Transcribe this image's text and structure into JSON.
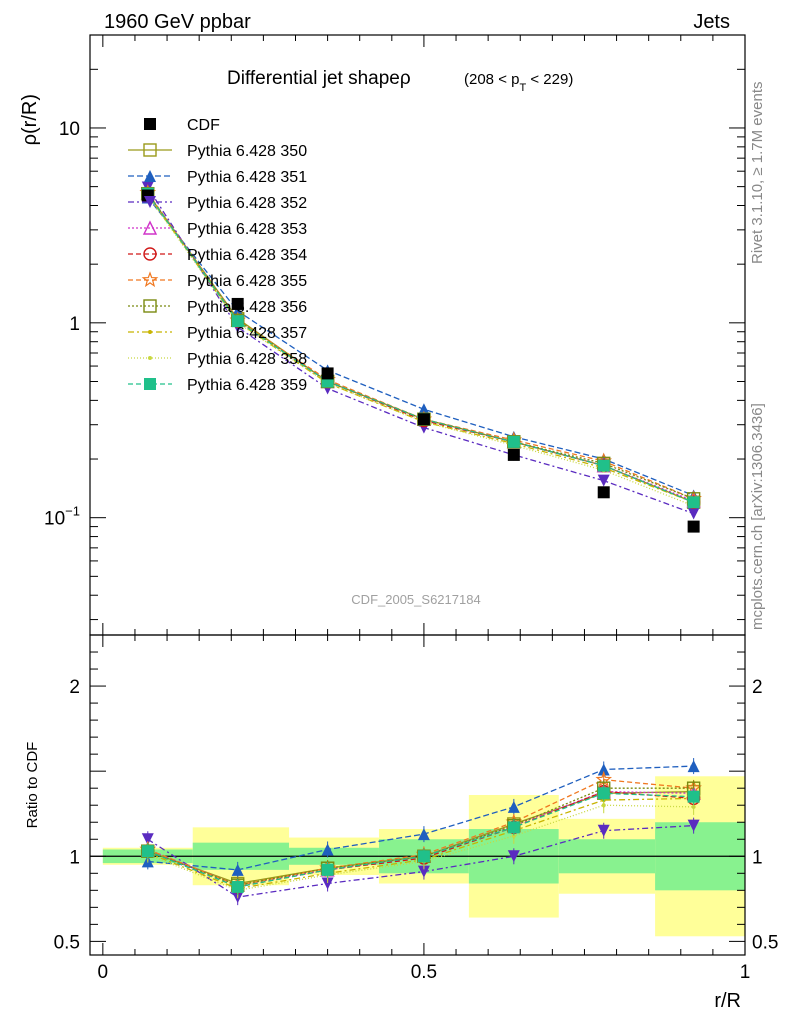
{
  "header": {
    "left": "1960 GeV ppbar",
    "right": "Jets",
    "side_top": "Rivet 3.1.10, ≥ 1.7M events",
    "side_bottom": "mcplots.cern.ch [arXiv:1306.3436]"
  },
  "chart_data": [
    {
      "type": "line",
      "panel": "main",
      "title": "Differential jet shapeρ",
      "title_cut_parts": [
        "(208 < p",
        "T",
        " < 229)"
      ],
      "ylabel": "ρ(r/R)",
      "watermark": "CDF_2005_S6217184",
      "yscale": "log",
      "ylim": [
        0.025,
        30
      ],
      "xlim": [
        -0.02,
        1.0
      ],
      "ytick_labels": [
        {
          "value": 10,
          "label": "10"
        },
        {
          "value": 1,
          "label": "1"
        },
        {
          "value": 0.1,
          "label": "10",
          "exponent": "−1"
        }
      ],
      "x": [
        0.07,
        0.21,
        0.35,
        0.5,
        0.64,
        0.78,
        0.92
      ],
      "data": {
        "name": "CDF",
        "color": "#000000",
        "values": [
          4.5,
          1.25,
          0.55,
          0.32,
          0.21,
          0.135,
          0.09
        ],
        "bands": [
          {
            "x0": 0.0,
            "x1": 0.14,
            "inner": [
              0.96,
              1.04
            ],
            "outer": [
              0.95,
              1.05
            ]
          },
          {
            "x0": 0.14,
            "x1": 0.29,
            "inner": [
              0.92,
              1.08
            ],
            "outer": [
              0.83,
              1.17
            ]
          },
          {
            "x0": 0.29,
            "x1": 0.43,
            "inner": [
              0.95,
              1.05
            ],
            "outer": [
              0.89,
              1.11
            ]
          },
          {
            "x0": 0.43,
            "x1": 0.57,
            "inner": [
              0.9,
              1.1
            ],
            "outer": [
              0.84,
              1.16
            ]
          },
          {
            "x0": 0.57,
            "x1": 0.71,
            "inner": [
              0.84,
              1.16
            ],
            "outer": [
              0.64,
              1.36
            ]
          },
          {
            "x0": 0.71,
            "x1": 0.86,
            "inner": [
              0.9,
              1.1
            ],
            "outer": [
              0.78,
              1.22
            ]
          },
          {
            "x0": 0.86,
            "x1": 1.0,
            "inner": [
              0.8,
              1.2
            ],
            "outer": [
              0.53,
              1.47
            ]
          }
        ]
      },
      "series": [
        {
          "name": "Pythia 6.428 350",
          "color": "#9a9a1a",
          "dash": "",
          "marker": "square-open",
          "values": [
            4.6,
            1.05,
            0.5,
            0.32,
            0.245,
            0.185,
            0.12
          ]
        },
        {
          "name": "Pythia 6.428 351",
          "color": "#1f5fbf",
          "dash": "6,3",
          "marker": "triangle-up",
          "values": [
            4.4,
            1.15,
            0.57,
            0.36,
            0.26,
            0.2,
            0.13
          ]
        },
        {
          "name": "Pythia 6.428 352",
          "color": "#5a2bc0",
          "dash": "6,3,2,3",
          "marker": "triangle-down",
          "values": [
            4.95,
            0.95,
            0.46,
            0.29,
            0.21,
            0.155,
            0.105
          ]
        },
        {
          "name": "Pythia 6.428 353",
          "color": "#d033c9",
          "dash": "2,2",
          "marker": "triangle-open",
          "values": [
            4.65,
            1.03,
            0.5,
            0.32,
            0.245,
            0.185,
            0.122
          ]
        },
        {
          "name": "Pythia 6.428 354",
          "color": "#d01818",
          "dash": "5,3",
          "marker": "circle-open",
          "values": [
            4.6,
            1.02,
            0.5,
            0.315,
            0.245,
            0.185,
            0.12
          ]
        },
        {
          "name": "Pythia 6.428 355",
          "color": "#f07820",
          "dash": "5,3",
          "marker": "star-open",
          "values": [
            4.65,
            1.03,
            0.51,
            0.32,
            0.25,
            0.195,
            0.125
          ]
        },
        {
          "name": "Pythia 6.428 356",
          "color": "#7a8a10",
          "dash": "2,2",
          "marker": "square-open",
          "values": [
            4.6,
            1.03,
            0.5,
            0.32,
            0.245,
            0.19,
            0.125
          ]
        },
        {
          "name": "Pythia 6.428 357",
          "color": "#c8b400",
          "dash": "6,3,2,3",
          "marker": "dot",
          "values": [
            4.55,
            1.01,
            0.49,
            0.31,
            0.24,
            0.18,
            0.12
          ]
        },
        {
          "name": "Pythia 6.428 358",
          "color": "#c8d840",
          "dash": "1,2",
          "marker": "dot",
          "values": [
            4.5,
            1.0,
            0.49,
            0.31,
            0.235,
            0.175,
            0.115
          ]
        },
        {
          "name": "Pythia 6.428 359",
          "color": "#20c08a",
          "dash": "5,3",
          "marker": "square-filled",
          "values": [
            4.6,
            1.02,
            0.5,
            0.32,
            0.245,
            0.185,
            0.12
          ]
        }
      ]
    },
    {
      "type": "line",
      "panel": "ratio",
      "ylabel": "Ratio to CDF",
      "xlabel": "r/R",
      "ylim": [
        0.42,
        2.3
      ],
      "xlim": [
        -0.02,
        1.0
      ],
      "ytick_labels": [
        {
          "value": 2,
          "label": "2"
        },
        {
          "value": 1,
          "label": "1"
        },
        {
          "value": 0.5,
          "label": "0.5"
        }
      ],
      "xtick_labels": [
        {
          "value": 0,
          "label": "0"
        },
        {
          "value": 0.5,
          "label": "0.5"
        },
        {
          "value": 1,
          "label": "1"
        }
      ],
      "x": [
        0.07,
        0.21,
        0.35,
        0.5,
        0.64,
        0.78,
        0.92
      ],
      "series": [
        {
          "name": "Pythia 6.428 350",
          "values": [
            1.03,
            0.84,
            0.93,
            1.0,
            1.19,
            1.37,
            1.38
          ]
        },
        {
          "name": "Pythia 6.428 351",
          "values": [
            0.97,
            0.92,
            1.04,
            1.13,
            1.29,
            1.51,
            1.53
          ]
        },
        {
          "name": "Pythia 6.428 352",
          "values": [
            1.1,
            0.76,
            0.84,
            0.91,
            1.0,
            1.15,
            1.18
          ]
        },
        {
          "name": "Pythia 6.428 353",
          "values": [
            1.04,
            0.83,
            0.92,
            1.0,
            1.18,
            1.38,
            1.37
          ]
        },
        {
          "name": "Pythia 6.428 354",
          "values": [
            1.03,
            0.82,
            0.92,
            0.99,
            1.17,
            1.38,
            1.34
          ]
        },
        {
          "name": "Pythia 6.428 355",
          "values": [
            1.04,
            0.83,
            0.93,
            1.01,
            1.2,
            1.45,
            1.4
          ]
        },
        {
          "name": "Pythia 6.428 356",
          "values": [
            1.03,
            0.83,
            0.93,
            1.0,
            1.18,
            1.4,
            1.4
          ]
        },
        {
          "name": "Pythia 6.428 357",
          "values": [
            1.02,
            0.81,
            0.9,
            0.98,
            1.15,
            1.33,
            1.34
          ]
        },
        {
          "name": "Pythia 6.428 358",
          "values": [
            1.01,
            0.8,
            0.89,
            0.97,
            1.12,
            1.3,
            1.29
          ]
        },
        {
          "name": "Pythia 6.428 359",
          "values": [
            1.03,
            0.82,
            0.92,
            1.0,
            1.17,
            1.37,
            1.35
          ]
        }
      ]
    }
  ]
}
